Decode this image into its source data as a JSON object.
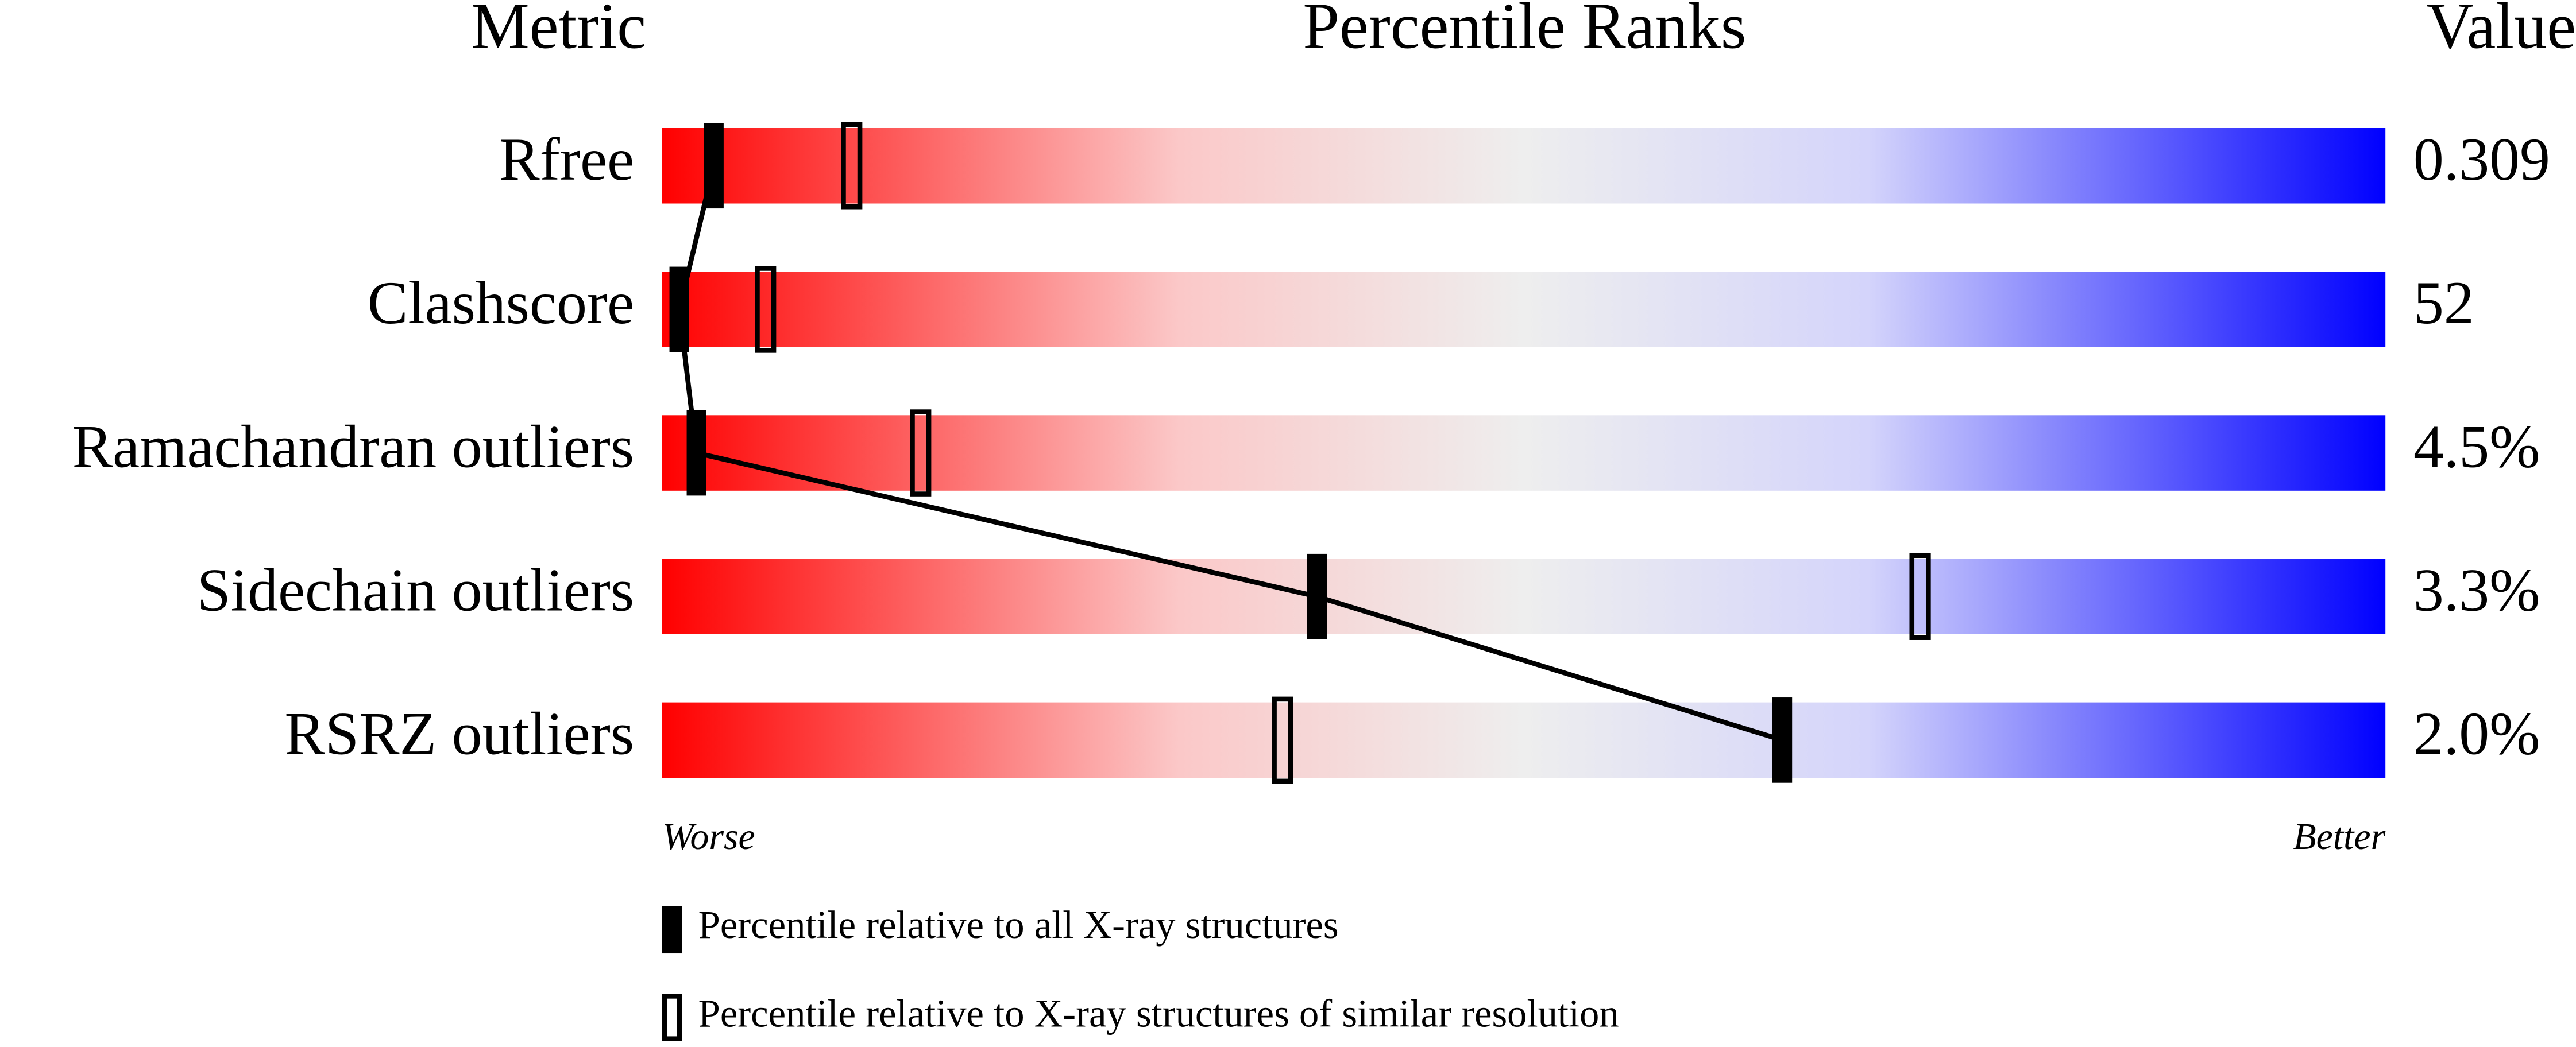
{
  "chart_data": {
    "type": "percentile-slider",
    "column_headers": {
      "metric": "Metric",
      "percentile": "Percentile Ranks",
      "value": "Value"
    },
    "categories": [
      "Rfree",
      "Clashscore",
      "Ramachandran outliers",
      "Sidechain outliers",
      "RSRZ outliers"
    ],
    "metric_values": [
      "0.309",
      "52",
      "4.5%",
      "3.3%",
      "2.0%"
    ],
    "series": [
      {
        "name": "Percentile relative to all X-ray structures",
        "color": "#000000",
        "style": "filled",
        "values": [
          3,
          1,
          2,
          38,
          65
        ]
      },
      {
        "name": "Percentile relative to X-ray structures of similar resolution",
        "color": "#000000",
        "style": "open",
        "values": [
          11,
          6,
          15,
          73,
          36
        ]
      }
    ],
    "xlim": [
      0,
      100
    ],
    "axis_labels": {
      "left": "Worse",
      "right": "Better"
    }
  }
}
